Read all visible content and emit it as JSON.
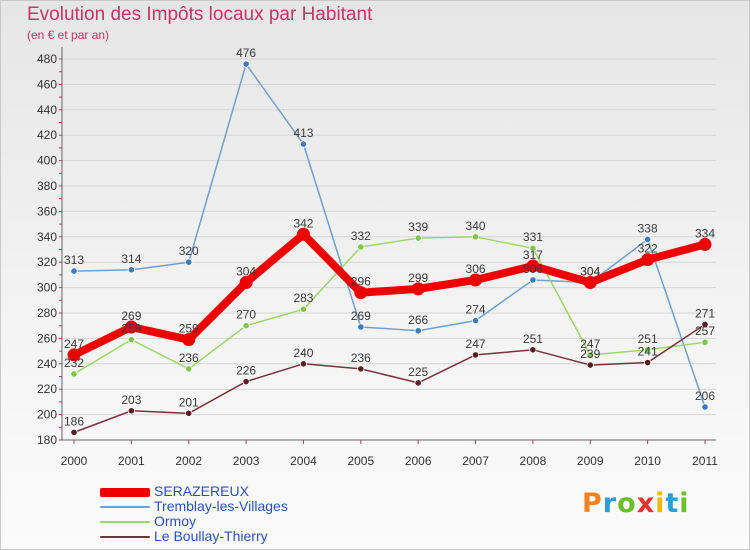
{
  "title": "Evolution des Impôts locaux par Habitant",
  "subtitle": "(en € et par an)",
  "brand": "Proxiti",
  "brand_colors": [
    "#f58220",
    "#2a9fd6",
    "#6cbf2a",
    "#e5322d",
    "#f5b800",
    "#2a9fd6",
    "#6cbf2a"
  ],
  "chart_data": {
    "type": "line",
    "title": "Evolution des Impôts locaux par Habitant",
    "subtitle": "(en € et par an)",
    "xlabel": "",
    "ylabel": "",
    "x": [
      "2000",
      "2001",
      "2002",
      "2003",
      "2004",
      "2005",
      "2006",
      "2007",
      "2008",
      "2009",
      "2010",
      "2011"
    ],
    "ylim": [
      180,
      480
    ],
    "yticks": [
      "180",
      "200",
      "220",
      "240",
      "260",
      "280",
      "300",
      "320",
      "340",
      "360",
      "380",
      "400",
      "420",
      "440",
      "460",
      "480"
    ],
    "grid": "horizontal",
    "legend_position": "bottom-left",
    "series": [
      {
        "name": "Tremblay-les-Villages",
        "color": "#6ea0d2",
        "marker": "#3b7cc0",
        "values": [
          313,
          314,
          320,
          476,
          413,
          269,
          266,
          274,
          306,
          304,
          338,
          206
        ],
        "labels": [
          "313",
          "314",
          "320",
          "476",
          "413",
          "269",
          "266",
          "274",
          "306",
          "304",
          "338",
          "206"
        ]
      },
      {
        "name": "Ormoy",
        "color": "#9ad86a",
        "marker": "#7cc94a",
        "values": [
          232,
          259,
          236,
          270,
          283,
          332,
          339,
          340,
          331,
          247,
          251,
          257
        ],
        "labels": [
          "232",
          "259",
          "236",
          "270",
          "283",
          "332",
          "339",
          "340",
          "331",
          "247",
          "251",
          "257"
        ]
      },
      {
        "name": "Le Boullay-Thierry",
        "color": "#7a3038",
        "marker": "#5e1c24",
        "values": [
          186,
          203,
          201,
          226,
          240,
          236,
          225,
          247,
          251,
          239,
          241,
          271
        ],
        "labels": [
          "186",
          "203",
          "201",
          "226",
          "240",
          "236",
          "225",
          "247",
          "251",
          "239",
          "241",
          "271"
        ]
      },
      {
        "name": "SERAZEREUX",
        "color": "#ee0000",
        "marker": "#ee0000",
        "values": [
          247,
          269,
          259,
          304,
          342,
          296,
          299,
          306,
          317,
          304,
          322,
          334
        ],
        "labels": [
          "247",
          "269",
          "259",
          "304",
          "342",
          "296",
          "299",
          "306",
          "317",
          "304",
          "322",
          "334"
        ]
      }
    ]
  },
  "legend": [
    {
      "label": "SERAZEREUX",
      "color": "#ee0000",
      "thickness": 9
    },
    {
      "label": "Tremblay-les-Villages",
      "color": "#6ea0d2",
      "thickness": 2
    },
    {
      "label": "Ormoy",
      "color": "#9ad86a",
      "thickness": 2
    },
    {
      "label": "Le Boullay-Thierry",
      "color": "#7a3038",
      "thickness": 2
    }
  ]
}
